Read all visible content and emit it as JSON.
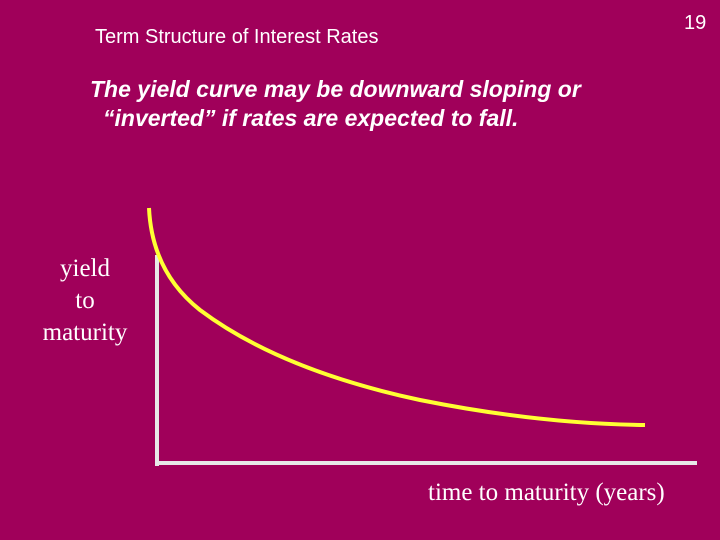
{
  "header": {
    "title": "Term Structure of Interest Rates",
    "slide_number": "19"
  },
  "body": {
    "lines": [
      "The yield curve may be downward sloping or",
      "“inverted” if  rates are expected to fall."
    ]
  },
  "diagram": {
    "y_axis_label": [
      "yield",
      "to",
      "maturity"
    ],
    "x_axis_label": "time to maturity (years)"
  }
}
